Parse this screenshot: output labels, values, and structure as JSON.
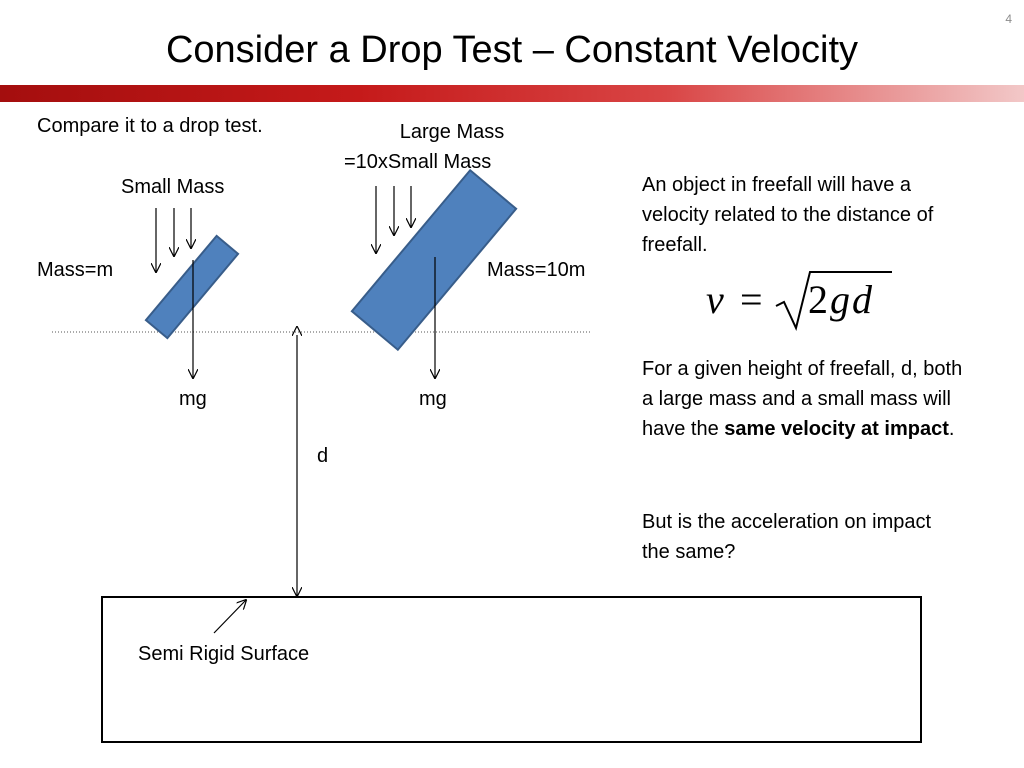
{
  "slide": {
    "number": "4",
    "title": "Consider a Drop Test – Constant Velocity",
    "accent_color": "#c51a1a"
  },
  "diagram": {
    "intro": "Compare it to a drop test.",
    "small_mass": {
      "caption": "Small Mass",
      "mass_label": "Mass=m",
      "force_label": "mg",
      "fill": "#4f81bd"
    },
    "large_mass": {
      "caption_line1": "Large Mass",
      "caption_line2": "=10xSmall Mass",
      "mass_label": "Mass=10m",
      "force_label": "mg",
      "fill": "#4f81bd"
    },
    "distance_label": "d",
    "surface_label": "Semi Rigid Surface"
  },
  "explanation": {
    "para1": "An object in freefall will have a velocity related to the distance of freefall.",
    "formula": {
      "lhs": "v",
      "equals": "=",
      "coefficient": "2",
      "vars": "gd"
    },
    "para2_before": "For a given height of freefall, d, both a large mass and a small mass will have the ",
    "para2_bold": "same velocity at impact",
    "para2_after": ".",
    "para3": "But is the acceleration on impact the same?"
  }
}
